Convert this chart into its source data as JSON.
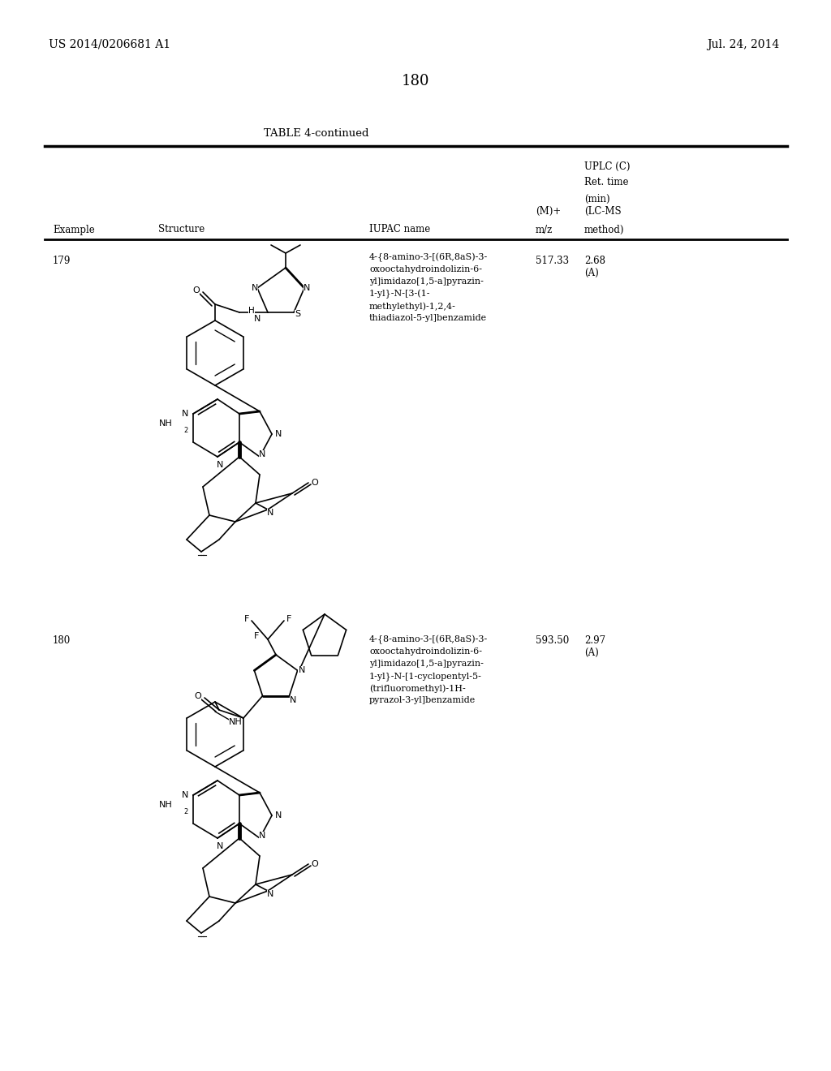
{
  "patent_number": "US 2014/0206681 A1",
  "date": "Jul. 24, 2014",
  "page_number": "180",
  "table_title": "TABLE 4-continued",
  "col_example": "Example",
  "col_structure": "Structure",
  "col_iupac": "IUPAC name",
  "col_mz_line1": "(M)+",
  "col_mz_line2": "m/z",
  "col_uplc_line1": "UPLC (C)",
  "col_uplc_line2": "Ret. time",
  "col_uplc_line3": "(min)",
  "col_uplc_line4": "(LC-MS",
  "col_uplc_line5": "method)",
  "row1_example": "179",
  "row1_iupac": [
    "4-{8-amino-3-[(6R,8aS)-3-",
    "oxooctahydroindolizin-6-",
    "yl]imidazo[1,5-a]pyrazin-",
    "1-yl}-N-[3-(1-",
    "methylethyl)-1,2,4-",
    "thiadiazol-5-yl]benzamide"
  ],
  "row1_mz": "517.33",
  "row1_uplc1": "2.68",
  "row1_uplc2": "(A)",
  "row2_example": "180",
  "row2_iupac": [
    "4-{8-amino-3-[(6R,8aS)-3-",
    "oxooctahydroindolizin-6-",
    "yl]imidazo[1,5-a]pyrazin-",
    "1-yl}-N-[1-cyclopentyl-5-",
    "(trifluoromethyl)-1H-",
    "pyrazol-3-yl]benzamide"
  ],
  "row2_mz": "593.50",
  "row2_uplc1": "2.97",
  "row2_uplc2": "(A)",
  "bg": "#ffffff",
  "fg": "#000000"
}
